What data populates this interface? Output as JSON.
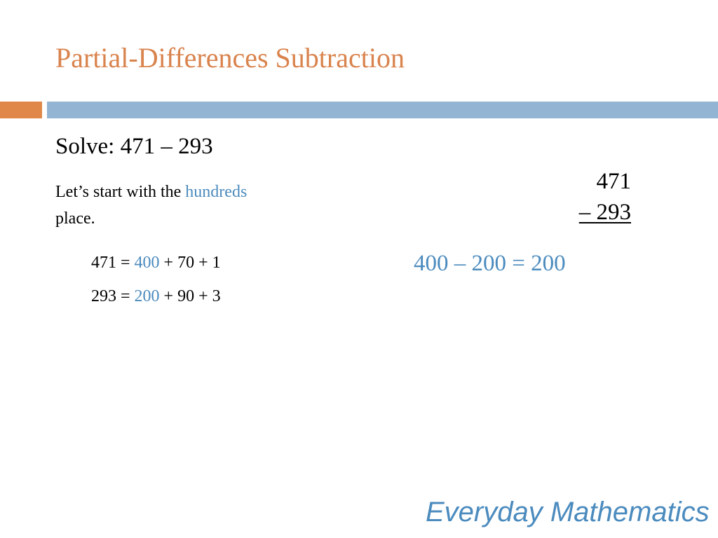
{
  "slide": {
    "title": "Partial-Differences Subtraction",
    "solve_prompt": "Solve: 471 – 293",
    "intro": {
      "text_before": "Let’s start with the ",
      "highlight": "hundreds",
      "text_after": "place."
    },
    "decompositions": [
      {
        "lead": "471 = ",
        "highlight": "400",
        "rest": " + 70 + 1"
      },
      {
        "lead": "293 = ",
        "highlight": "200",
        "rest": " + 90 + 3"
      }
    ],
    "vertical_problem": {
      "minuend": "471",
      "subtrahend": "– 293"
    },
    "partial_result": "400 – 200 = 200",
    "footer_brand": "Everyday Mathematics"
  },
  "colors": {
    "title": "#d9834d",
    "accent": "#4b8bbe",
    "bar_orange": "#e0884a",
    "bar_blue": "#93b4d3"
  }
}
